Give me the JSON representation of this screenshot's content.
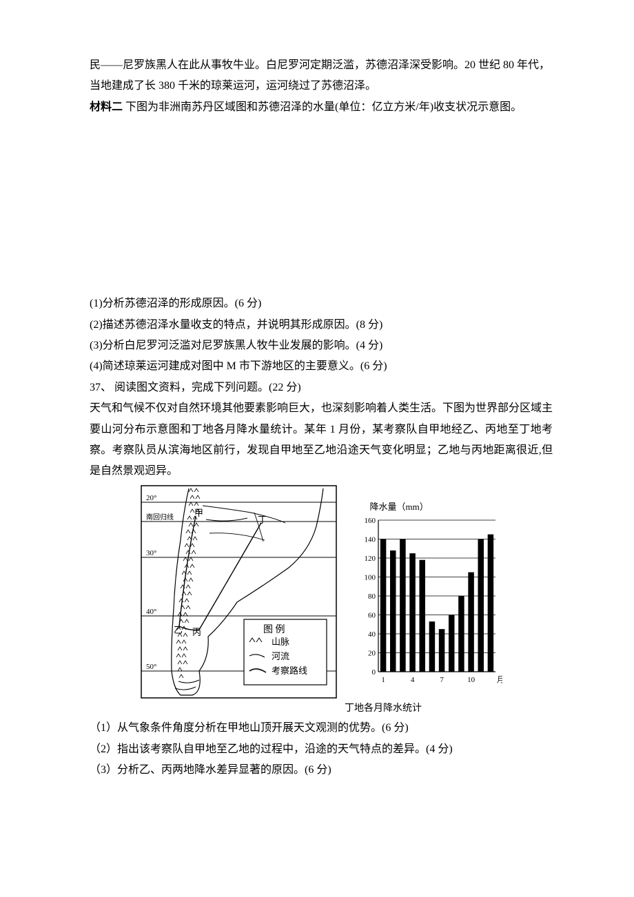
{
  "intro": {
    "line1": "民——尼罗族黑人在此从事牧牛业。白尼罗河定期泛滥，苏德沼泽深受影响。20 世纪 80 年代，",
    "line2": "当地建成了长 380 千米的琼莱运河，运河绕过了苏德沼泽。"
  },
  "material2": {
    "label": "材料二",
    "text": "  下图为非洲南苏丹区域图和苏德沼泽的水量(单位：亿立方米/年)收支状况示意图。"
  },
  "q36": {
    "sub1": "(1)分析苏德沼泽的形成原因。(6 分)",
    "sub2": "(2)描述苏德沼泽水量收支的特点，并说明其形成原因。(8 分)",
    "sub3": "(3)分析白尼罗河泛滥对尼罗族黑人牧牛业发展的影响。(4 分)",
    "sub4": "(4)简述琼莱运河建成对图中 M 市下游地区的主要意义。(6 分)"
  },
  "q37": {
    "header": "37、 阅读图文资料，完成下列问题。(22 分)",
    "para": "天气和气候不仅对自然环境其他要素影响巨大，也深刻影响着人类生活。下图为世界部分区域主要山河分布示意图和丁地各月降水量统计。某年 1 月份，某考察队自甲地经乙、丙地至丁地考察。考察队员从滨海地区前行，发现自甲地至乙地沿途天气变化明显；乙地与丙地距离很近,但是自然景观迥异。",
    "sub1": "（1）从气象条件角度分析在甲地山顶开展天文观测的优势。(6 分)",
    "sub2": "（2）指出该考察队自甲地至乙地的过程中，沿途的天气特点的差异。(4 分)",
    "sub3": "（3）分析乙、丙两地降水差异显著的原因。(6 分)"
  },
  "map": {
    "lat_labels": [
      "20°",
      "30°",
      "40°",
      "50°"
    ],
    "tropic_label": "南回归线",
    "markers": {
      "jia": "甲",
      "yi": "乙",
      "bing": "丙",
      "ding": "丁"
    },
    "legend": {
      "title": "图  例",
      "items": [
        {
          "symbol": "mountain",
          "label": "山脉"
        },
        {
          "symbol": "river",
          "label": "河流"
        },
        {
          "symbol": "route",
          "label": "考察路线"
        }
      ]
    },
    "colors": {
      "stroke": "#000000",
      "fill": "#ffffff",
      "mountain": "#000000"
    }
  },
  "chart": {
    "type": "bar",
    "ylabel": "降水量（mm）",
    "xlabel_ticks": [
      1,
      4,
      7,
      10
    ],
    "xlabel_unit": "月",
    "months": [
      1,
      2,
      3,
      4,
      5,
      6,
      7,
      8,
      9,
      10,
      11,
      12
    ],
    "values": [
      140,
      128,
      140,
      125,
      118,
      53,
      45,
      60,
      80,
      105,
      140,
      145
    ],
    "ylim": [
      0,
      160
    ],
    "ytick_step": 20,
    "bar_color": "#000000",
    "grid_color": "#000000",
    "background_color": "#ffffff",
    "axis_color": "#000000",
    "bar_width_ratio": 0.6,
    "label_fontsize": 11,
    "tick_fontsize": 11,
    "caption": "丁地各月降水统计"
  }
}
